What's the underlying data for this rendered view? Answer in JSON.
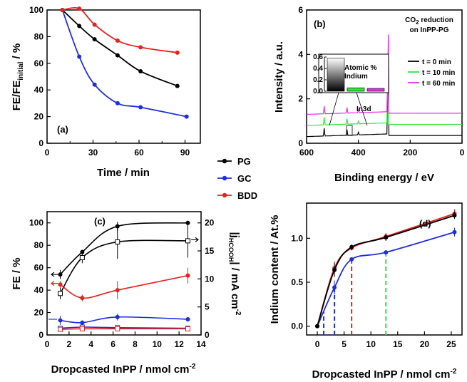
{
  "colors": {
    "PG": "#000000",
    "GC": "#1f2de0",
    "BDD": "#e8201e",
    "green": "#2ee83a",
    "magenta": "#e82ce8"
  },
  "legend": {
    "items": [
      {
        "label": "PG",
        "color": "#000000"
      },
      {
        "label": "GC",
        "color": "#1f2de0"
      },
      {
        "label": "BDD",
        "color": "#e8201e"
      }
    ]
  },
  "chart_data": [
    {
      "panel": "(a)",
      "type": "line",
      "xlabel": "Time / min",
      "ylabel": "FE/FE",
      "ylabel_sub": "initial",
      "ylabel_unit": " / %",
      "xlim": [
        0,
        100
      ],
      "ylim": [
        0,
        100
      ],
      "xticks": [
        0,
        30,
        60,
        90
      ],
      "yticks": [
        0,
        20,
        40,
        60,
        80,
        100
      ],
      "series": [
        {
          "name": "PG",
          "x": [
            10,
            21,
            31,
            46,
            61,
            85
          ],
          "y": [
            100,
            88,
            78,
            66,
            54,
            43
          ]
        },
        {
          "name": "GC",
          "x": [
            10,
            21,
            31,
            46,
            61,
            91
          ],
          "y": [
            100,
            65,
            44,
            30,
            27,
            20
          ]
        },
        {
          "name": "BDD",
          "x": [
            10,
            21,
            31,
            46,
            61,
            85
          ],
          "y": [
            100,
            101,
            89,
            77,
            72,
            68
          ]
        }
      ]
    },
    {
      "panel": "(b)",
      "type": "line",
      "xlabel": "Binding energy / eV",
      "ylabel": "Intensity / a.u.",
      "xlim": [
        600,
        0
      ],
      "ylim": [
        0,
        6
      ],
      "xticks": [
        600,
        400,
        200,
        0
      ],
      "yticks": [
        0,
        2,
        4,
        6
      ],
      "title_line1": "CO",
      "title_sub": "2",
      "title_rest": " reduction",
      "title_line2": "on InPP-PG",
      "series": [
        {
          "name": "t = 0 min",
          "offset": 0.3,
          "color": "#000000"
        },
        {
          "name": "t = 10 min",
          "offset": 0.8,
          "color": "#2ee83a"
        },
        {
          "name": "t = 60 min",
          "offset": 1.3,
          "color": "#e82ce8"
        }
      ],
      "annotation": "In3d",
      "inset": {
        "title1": "Atomic %",
        "title2": "Indium",
        "yticks": [
          "0.6",
          "0.4",
          "0.2",
          "0.0"
        ],
        "values": [
          0.58,
          0.06,
          0.05
        ]
      }
    },
    {
      "panel": "(c)",
      "type": "scatter",
      "xlabel": "Dropcasted InPP / nmol cm",
      "xlabel_sup": "-2",
      "ylabel": "FE / %",
      "y2label_main": "|j",
      "y2label_sub": "HCOOH",
      "y2label_rest": "| / mA cm",
      "y2label_sup": "-2",
      "xlim": [
        0,
        14
      ],
      "ylim": [
        0,
        110
      ],
      "y2lim": [
        0,
        22
      ],
      "xticks": [
        0,
        2,
        4,
        6,
        8,
        10,
        12,
        14
      ],
      "yticks": [
        0,
        20,
        40,
        60,
        80,
        100
      ],
      "y2ticks": [
        0,
        5,
        10,
        15,
        20
      ],
      "x": [
        1.2,
        3.2,
        6.4,
        12.8
      ],
      "series": [
        {
          "name": "PG",
          "fe": [
            54,
            74,
            97,
            100
          ],
          "fe_err": [
            4,
            2,
            4,
            2
          ],
          "j": [
            7.4,
            13.8,
            16.6,
            16.8
          ],
          "j_err": [
            1,
            1,
            3,
            3
          ]
        },
        {
          "name": "GC",
          "fe": [
            13,
            11,
            16,
            14
          ],
          "fe_err": [
            4,
            2,
            3,
            2
          ],
          "j": [
            1.2,
            1.4,
            1.3,
            1.2
          ],
          "j_err": [
            0.3,
            0.3,
            0.3,
            0.3
          ]
        },
        {
          "name": "BDD",
          "fe": [
            45,
            33,
            40,
            53
          ],
          "fe_err": [
            3,
            3,
            8,
            7
          ],
          "j": [
            1.0,
            1.1,
            1.1,
            1.1
          ],
          "j_err": [
            0.2,
            0.2,
            0.2,
            0.2
          ]
        }
      ]
    },
    {
      "panel": "(d)",
      "type": "line",
      "xlabel": "Dropcasted InPP / nmol cm",
      "xlabel_sup": "-2",
      "ylabel": "Indium content / At.%",
      "xlim": [
        -2,
        27
      ],
      "ylim": [
        -0.1,
        1.4
      ],
      "xticks": [
        0,
        5,
        10,
        15,
        20,
        25
      ],
      "yticks": [
        0.0,
        0.5,
        1.0
      ],
      "series": [
        {
          "name": "PG",
          "x": [
            0,
            3.2,
            6.4,
            12.8,
            25.6
          ],
          "y": [
            0,
            0.64,
            0.9,
            1.01,
            1.26
          ],
          "err": [
            0,
            0.08,
            0.03,
            0.04,
            0.04
          ]
        },
        {
          "name": "GC",
          "x": [
            0,
            3.2,
            6.4,
            12.8,
            25.6
          ],
          "y": [
            0,
            0.44,
            0.76,
            0.84,
            1.07
          ],
          "err": [
            0,
            0.08,
            0.02,
            0.02,
            0.05
          ]
        },
        {
          "name": "BDD",
          "x": [
            0,
            3.2,
            6.4,
            12.8,
            25.6
          ],
          "y": [
            0,
            0.66,
            0.89,
            1.02,
            1.28
          ],
          "err": [
            0,
            0.08,
            0.03,
            0.04,
            0.05
          ]
        }
      ],
      "guides": [
        {
          "x": 1.2,
          "color": "#1f2de0"
        },
        {
          "x": 3.2,
          "color": "#1f2de0"
        },
        {
          "x": 6.4,
          "color": "#e8201e"
        },
        {
          "x": 12.8,
          "color": "#2ee83a"
        }
      ]
    }
  ]
}
